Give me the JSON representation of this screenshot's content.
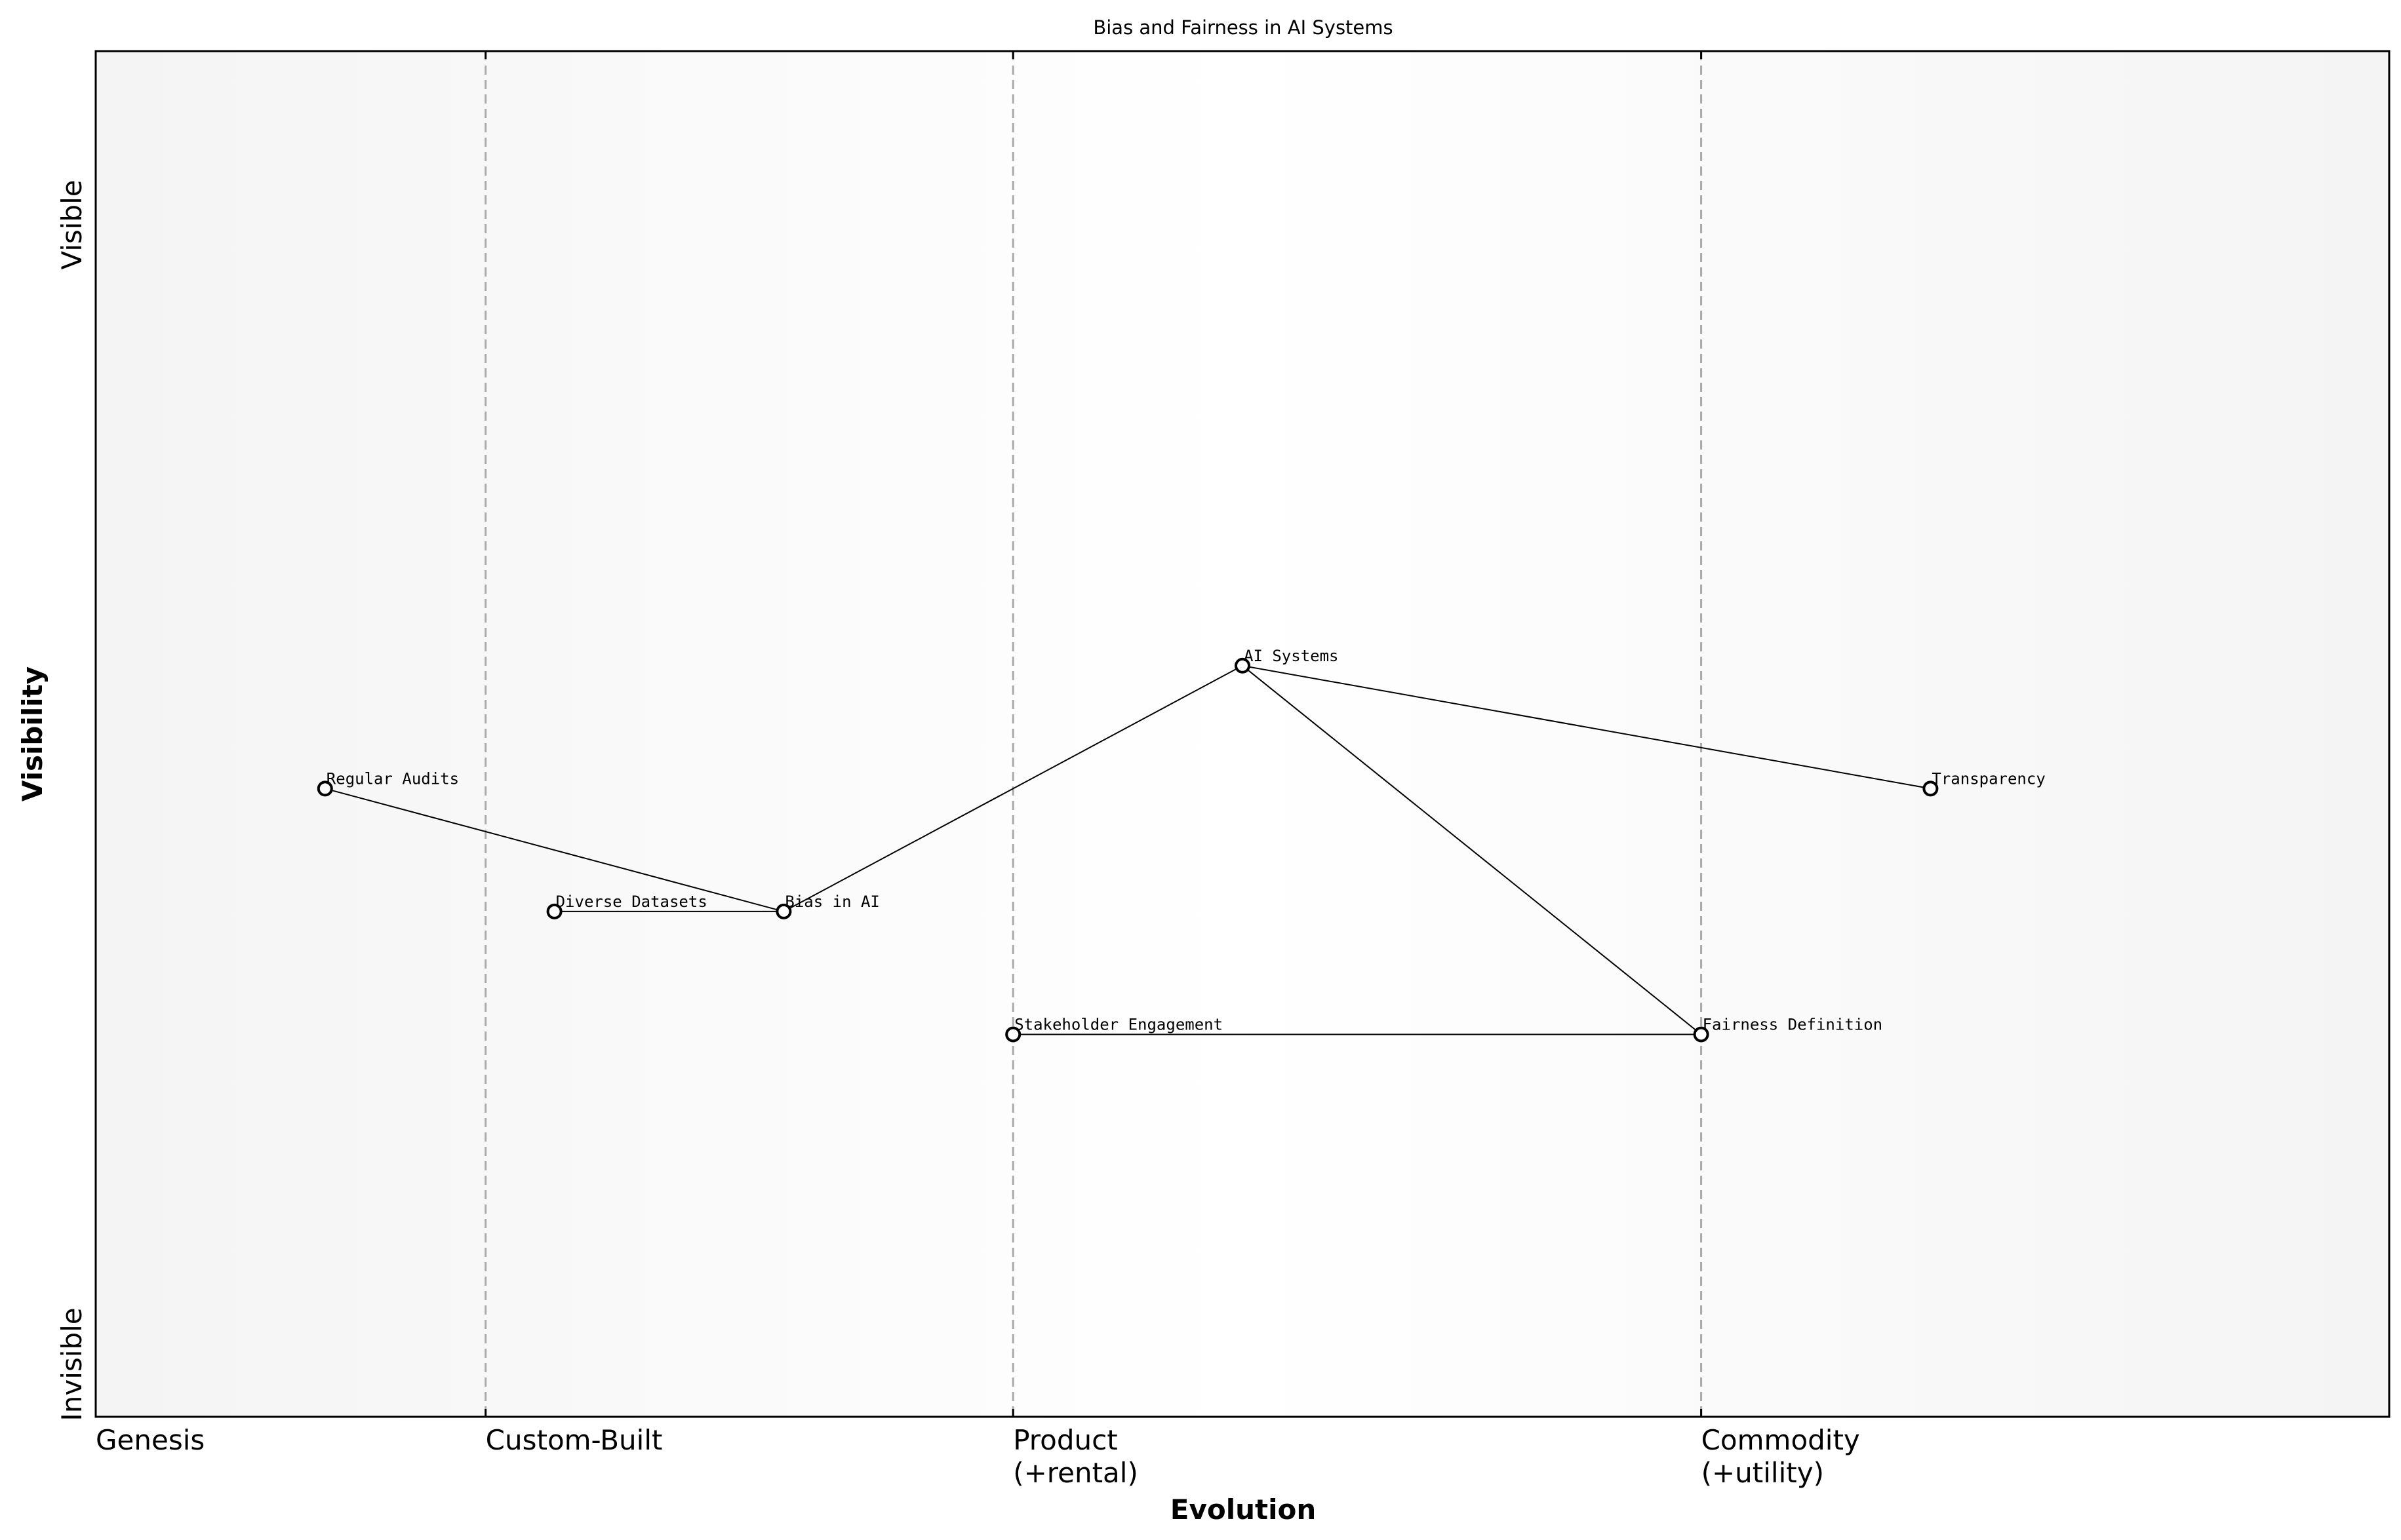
{
  "title": "Bias and Fairness in AI Systems",
  "axes": {
    "x_title": "Evolution",
    "y_title": "Visibility",
    "y_top_label": "Visible",
    "y_bottom_label": "Invisible"
  },
  "stages": [
    {
      "lines": [
        "Genesis"
      ],
      "evolution": 0.0,
      "divider": false
    },
    {
      "lines": [
        "Custom-Built"
      ],
      "evolution": 0.17,
      "divider": true
    },
    {
      "lines": [
        "Product",
        "(+rental)"
      ],
      "evolution": 0.4,
      "divider": true
    },
    {
      "lines": [
        "Commodity",
        "(+utility)"
      ],
      "evolution": 0.7,
      "divider": true
    }
  ],
  "components": [
    {
      "id": "ai-systems",
      "name": "AI Systems",
      "evolution": 0.5,
      "visibility": 0.55
    },
    {
      "id": "transparency",
      "name": "Transparency",
      "evolution": 0.8,
      "visibility": 0.46
    },
    {
      "id": "regular-audits",
      "name": "Regular Audits",
      "evolution": 0.1,
      "visibility": 0.46
    },
    {
      "id": "diverse-datasets",
      "name": "Diverse Datasets",
      "evolution": 0.2,
      "visibility": 0.37
    },
    {
      "id": "bias-in-ai",
      "name": "Bias in AI",
      "evolution": 0.3,
      "visibility": 0.37
    },
    {
      "id": "stakeholder-engagement",
      "name": "Stakeholder Engagement",
      "evolution": 0.4,
      "visibility": 0.28
    },
    {
      "id": "fairness-definition",
      "name": "Fairness Definition",
      "evolution": 0.7,
      "visibility": 0.28
    }
  ],
  "links": [
    {
      "from": "ai-systems",
      "to": "transparency"
    },
    {
      "from": "ai-systems",
      "to": "bias-in-ai"
    },
    {
      "from": "ai-systems",
      "to": "fairness-definition"
    },
    {
      "from": "bias-in-ai",
      "to": "regular-audits"
    },
    {
      "from": "bias-in-ai",
      "to": "diverse-datasets"
    },
    {
      "from": "fairness-definition",
      "to": "stakeholder-engagement"
    }
  ],
  "colors": {
    "background": "#ffffff",
    "plot_edge": "#f4f4f4",
    "plot_center": "#ffffff",
    "divider": "#aaaaaa",
    "line": "#000000",
    "node_fill": "#ffffff",
    "node_stroke": "#000000"
  }
}
